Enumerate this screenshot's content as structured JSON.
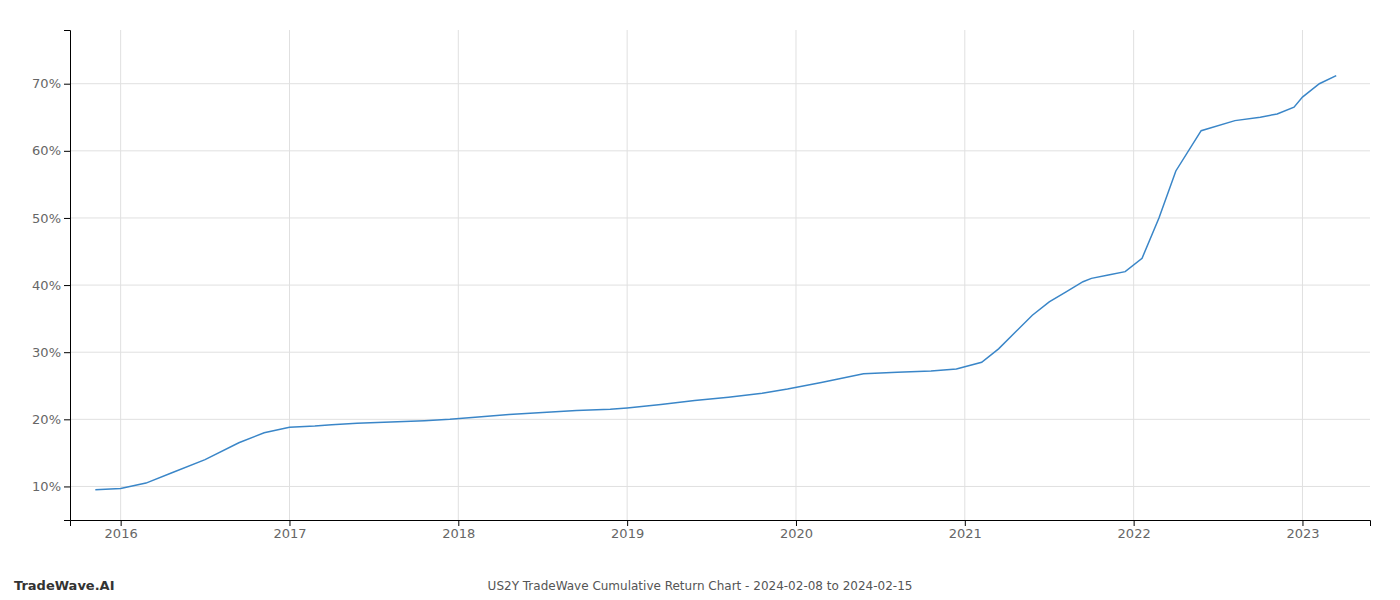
{
  "chart_data": {
    "type": "line",
    "title": "US2Y TradeWave Cumulative Return Chart - 2024-02-08 to 2024-02-15",
    "annotations": [
      "TradeWave.AI"
    ],
    "color": "#3a86c8",
    "grid": true,
    "x": [
      2015.85,
      2016.0,
      2016.15,
      2016.3,
      2016.5,
      2016.7,
      2016.85,
      2017.0,
      2017.15,
      2017.25,
      2017.4,
      2017.6,
      2017.8,
      2017.95,
      2018.1,
      2018.3,
      2018.5,
      2018.7,
      2018.9,
      2019.0,
      2019.2,
      2019.4,
      2019.6,
      2019.8,
      2019.95,
      2020.05,
      2020.15,
      2020.25,
      2020.4,
      2020.6,
      2020.8,
      2020.95,
      2021.1,
      2021.2,
      2021.3,
      2021.4,
      2021.5,
      2021.6,
      2021.7,
      2021.75,
      2021.85,
      2021.95,
      2022.05,
      2022.15,
      2022.25,
      2022.4,
      2022.6,
      2022.75,
      2022.85,
      2022.95,
      2023.0,
      2023.1,
      2023.2
    ],
    "values": [
      9.5,
      9.7,
      10.5,
      12.0,
      14.0,
      16.5,
      18.0,
      18.8,
      19.0,
      19.2,
      19.4,
      19.6,
      19.8,
      20.0,
      20.3,
      20.7,
      21.0,
      21.3,
      21.5,
      21.7,
      22.2,
      22.8,
      23.3,
      23.9,
      24.5,
      25.0,
      25.5,
      26.0,
      26.8,
      27.0,
      27.2,
      27.5,
      28.5,
      30.5,
      33.0,
      35.5,
      37.5,
      39.0,
      40.5,
      41.0,
      41.5,
      42.0,
      44.0,
      50.0,
      57.0,
      63.0,
      64.5,
      65.0,
      65.5,
      66.5,
      68.0,
      70.0,
      71.2
    ],
    "xlim": [
      2015.7,
      2023.4
    ],
    "ylim": [
      5,
      78
    ],
    "xticks": [
      2016,
      2017,
      2018,
      2019,
      2020,
      2021,
      2022,
      2023
    ],
    "yticks": [
      {
        "value": 10,
        "label": "10%"
      },
      {
        "value": 20,
        "label": "20%"
      },
      {
        "value": 30,
        "label": "30%"
      },
      {
        "value": 40,
        "label": "40%"
      },
      {
        "value": 50,
        "label": "50%"
      },
      {
        "value": 60,
        "label": "60%"
      },
      {
        "value": 70,
        "label": "70%"
      }
    ]
  }
}
